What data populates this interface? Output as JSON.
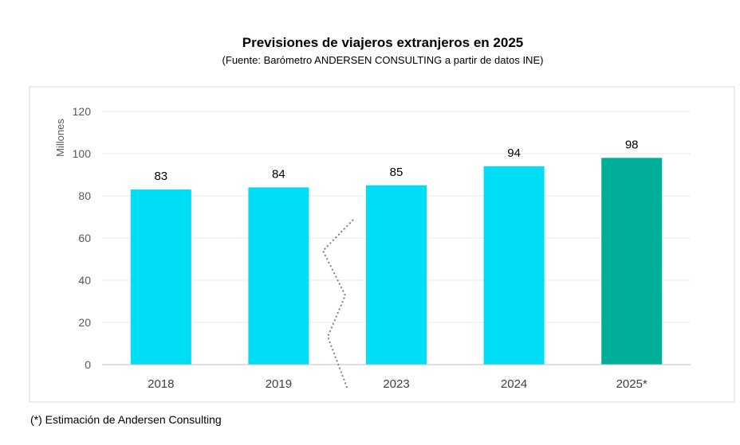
{
  "chart_data": {
    "type": "bar",
    "title": "Previsiones de viajeros extranjeros en 2025",
    "subtitle": "(Fuente: Barómetro ANDERSEN CONSULTING a partir de datos INE)",
    "ylabel": "Millones",
    "xlabel": "",
    "categories": [
      "2018",
      "2019",
      "2023",
      "2024",
      "2025*"
    ],
    "values": [
      83,
      84,
      85,
      94,
      98
    ],
    "data_labels": [
      "83",
      "84",
      "85",
      "94",
      "98"
    ],
    "ylim": [
      0,
      120
    ],
    "yticks": [
      0,
      20,
      40,
      60,
      80,
      100,
      120
    ],
    "grid": true,
    "legend": "none",
    "axis_break": "between 2019 and 2023",
    "colors": {
      "bar": "#00DEF5",
      "highlight": "#00AF9A",
      "grid": "#E8E8E8",
      "axis": "#BFBFBF",
      "break_line": "#808080"
    }
  },
  "footnote": "(*) Estimación de Andersen Consulting"
}
